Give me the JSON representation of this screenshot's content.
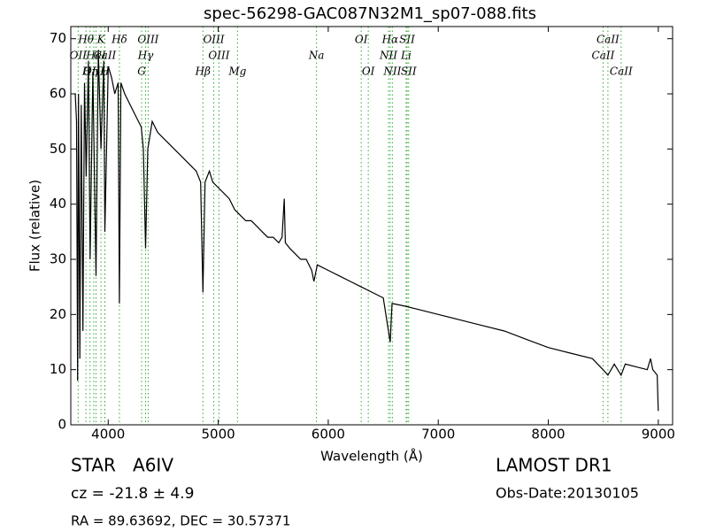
{
  "chart_data": {
    "type": "line",
    "title": "spec-56298-GAC087N32M1_sp07-088.fits",
    "x_label": "Wavelength (Å)",
    "y_label": "Flux (relative)",
    "xlim": [
      3660,
      9130
    ],
    "ylim": [
      0,
      72.2
    ],
    "xticks": [
      4000,
      5000,
      6000,
      7000,
      8000,
      9000
    ],
    "yticks": [
      0,
      10,
      20,
      30,
      40,
      50,
      60,
      70
    ],
    "color": "#000000",
    "line_color": "#33aa33",
    "x": [
      3700,
      3712,
      3722,
      3730,
      3742,
      3755,
      3770,
      3785,
      3800,
      3820,
      3835,
      3860,
      3889,
      3910,
      3934,
      3960,
      3970,
      4000,
      4030,
      4060,
      4090,
      4102,
      4115,
      4150,
      4200,
      4250,
      4300,
      4320,
      4340,
      4360,
      4400,
      4450,
      4500,
      4550,
      4600,
      4650,
      4700,
      4750,
      4800,
      4840,
      4861,
      4880,
      4920,
      4950,
      5000,
      5050,
      5100,
      5150,
      5200,
      5250,
      5300,
      5350,
      5400,
      5450,
      5500,
      5550,
      5580,
      5600,
      5610,
      5650,
      5700,
      5750,
      5800,
      5850,
      5870,
      5900,
      6000,
      6100,
      6200,
      6300,
      6400,
      6500,
      6563,
      6580,
      6700,
      6800,
      6900,
      7000,
      7200,
      7400,
      7600,
      7800,
      8000,
      8200,
      8400,
      8498,
      8542,
      8600,
      8662,
      8700,
      8800,
      8900,
      8930,
      8950,
      8990,
      9000
    ],
    "values": [
      60,
      55,
      8,
      60,
      12,
      58,
      17,
      62,
      45,
      66,
      30,
      64,
      27,
      68,
      50,
      66,
      35,
      65,
      63,
      60,
      62,
      22,
      62,
      60,
      58,
      56,
      54,
      50,
      32,
      50,
      55,
      53,
      52,
      51,
      50,
      49,
      48,
      47,
      46,
      44,
      24,
      44,
      46,
      44,
      43,
      42,
      41,
      39,
      38,
      37,
      37,
      36,
      35,
      34,
      34,
      33,
      34,
      41,
      33,
      32,
      31,
      30,
      30,
      28,
      26,
      29,
      28,
      27,
      26,
      25,
      24,
      23,
      15,
      22,
      21.5,
      21,
      20.5,
      20,
      19,
      18,
      17,
      15.5,
      14,
      13,
      12,
      10,
      9,
      11,
      9,
      11,
      10.5,
      10,
      12,
      10,
      9,
      2.5
    ],
    "spectral_lines": [
      [
        {
          "label": "Hθ",
          "x": 3798
        },
        {
          "label": "K",
          "x": 3934
        },
        {
          "label": "Hδ",
          "x": 4102
        },
        {
          "label": "OIII",
          "x": 4363
        },
        {
          "label": "OIII",
          "x": 4959
        },
        {
          "label": "OI",
          "x": 6300
        },
        {
          "label": "Hα",
          "x": 6563
        },
        {
          "label": "SII",
          "x": 6717
        },
        {
          "label": "CaII",
          "x": 8542
        }
      ],
      [
        {
          "label": "OII",
          "x": 3727
        },
        {
          "label": "HeI",
          "x": 3889
        },
        {
          "label": "CaII",
          "x": 3969
        },
        {
          "label": "Hγ",
          "x": 4340
        },
        {
          "label": "OIII",
          "x": 5007
        },
        {
          "label": "Na",
          "x": 5893
        },
        {
          "label": "NII",
          "x": 6548
        },
        {
          "label": "Li",
          "x": 6708
        },
        {
          "label": "CaII",
          "x": 8498
        }
      ],
      [
        {
          "label": "OIII",
          "x": 3869
        },
        {
          "label": "Hη",
          "x": 3835
        },
        {
          "label": "H",
          "x": 3970
        },
        {
          "label": "G",
          "x": 4304
        },
        {
          "label": "Hβ",
          "x": 4861
        },
        {
          "label": "Mg",
          "x": 5175
        },
        {
          "label": "OI",
          "x": 6364
        },
        {
          "label": "NII",
          "x": 6583
        },
        {
          "label": "SII",
          "x": 6731
        },
        {
          "label": "CaII",
          "x": 8662
        }
      ]
    ]
  },
  "footer": {
    "object": "STAR   A6IV",
    "redshift": "cz = -21.8 ± 4.9",
    "coords": "RA = 89.63692, DEC = 30.57371",
    "survey": "LAMOST DR1",
    "date": "Obs-Date:20130105"
  }
}
